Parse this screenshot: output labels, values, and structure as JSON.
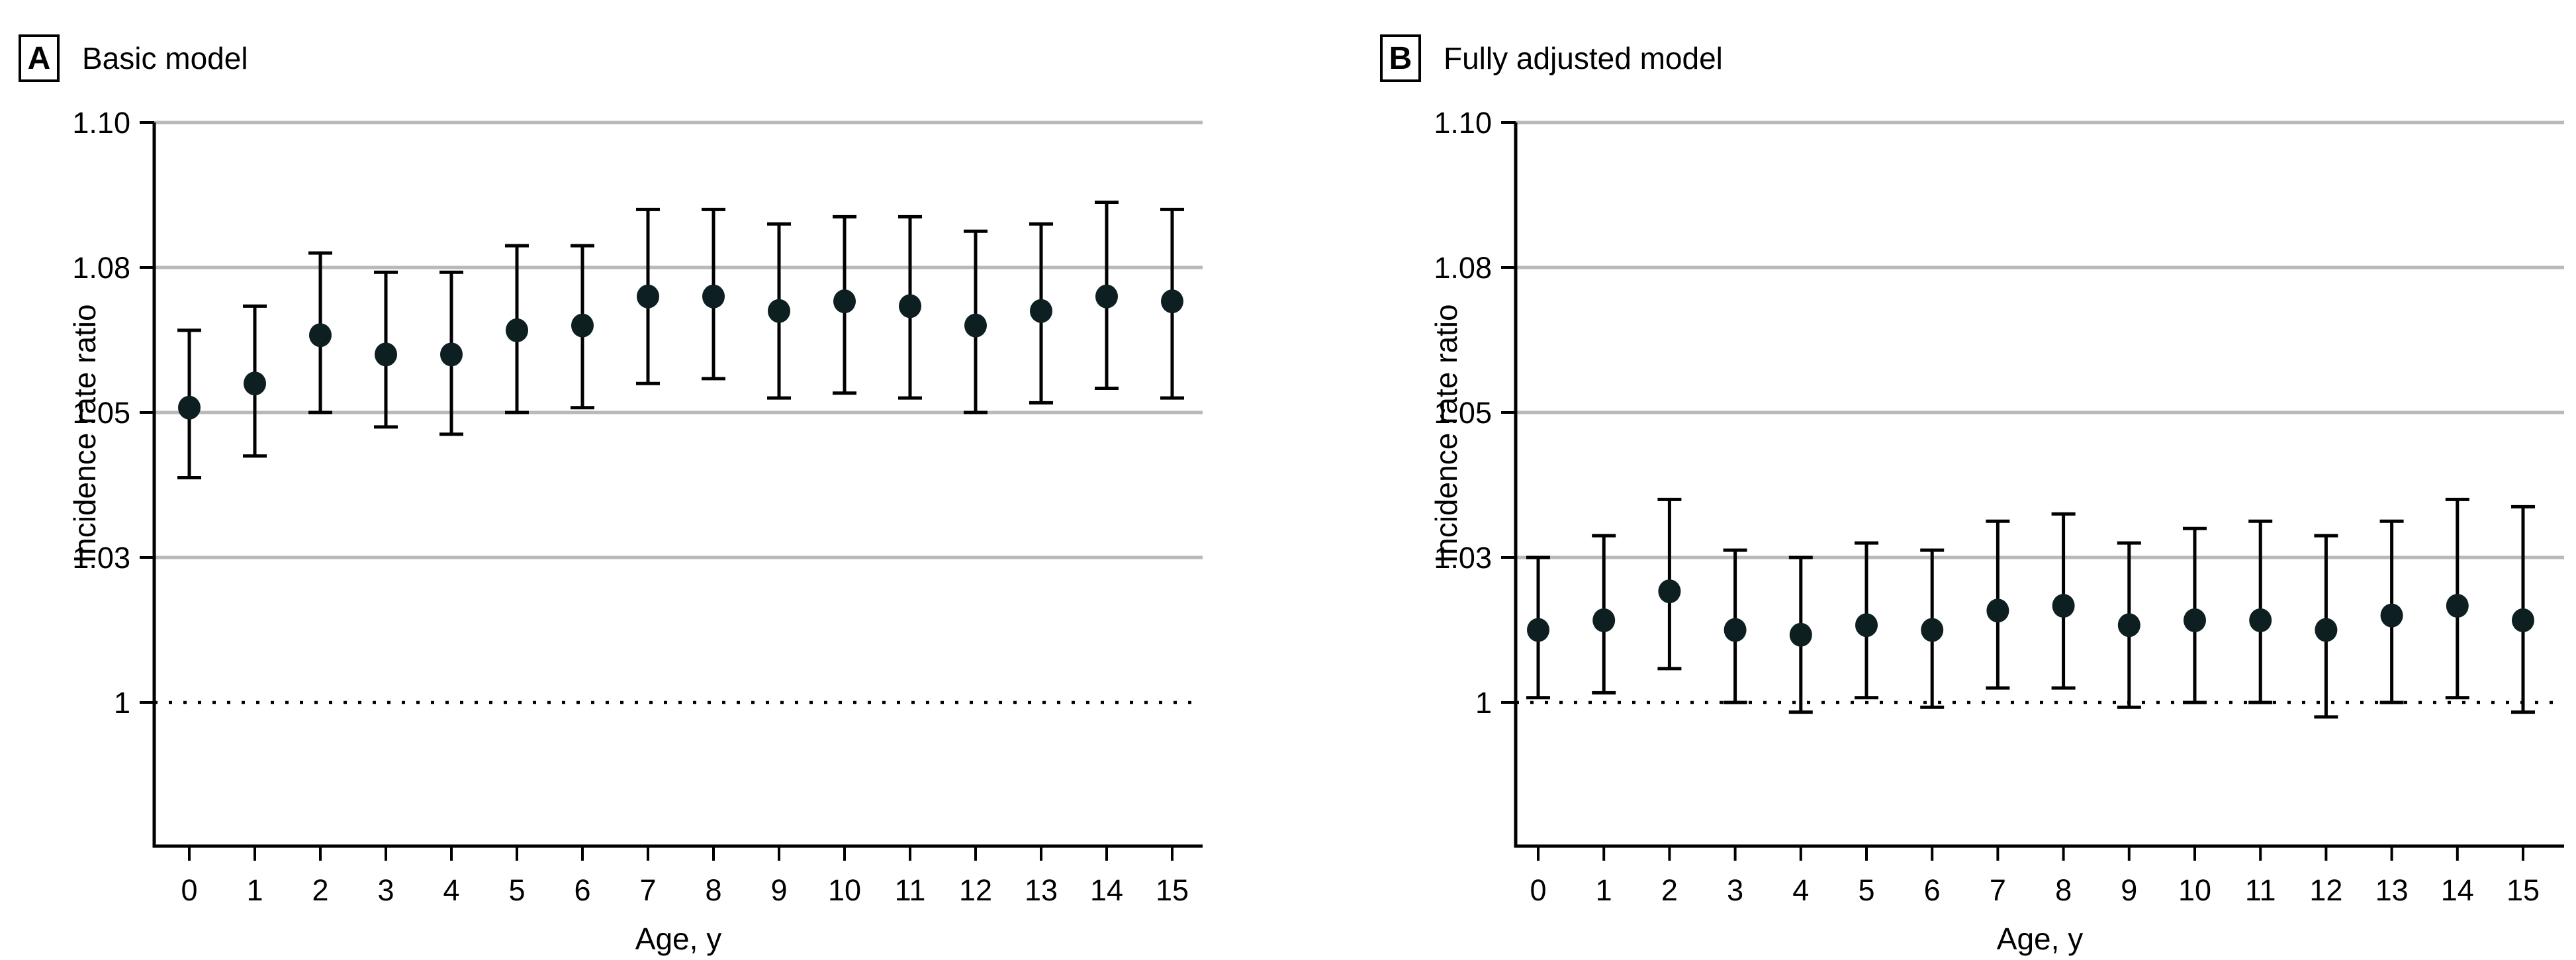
{
  "figure": {
    "panels": [
      {
        "label": "A",
        "title": "Basic model"
      },
      {
        "label": "B",
        "title": "Fully adjusted model"
      }
    ]
  },
  "chart_data": [
    {
      "type": "scatter",
      "panel_label": "A",
      "title": "Basic model",
      "xlabel": "Age, y",
      "ylabel": "Incidence rate ratio",
      "x": [
        0,
        1,
        2,
        3,
        4,
        5,
        6,
        7,
        8,
        9,
        10,
        11,
        12,
        13,
        14,
        15
      ],
      "series": [
        {
          "name": "Incidence rate ratio",
          "values": [
            1.051,
            1.056,
            1.066,
            1.062,
            1.062,
            1.067,
            1.068,
            1.074,
            1.074,
            1.071,
            1.073,
            1.072,
            1.068,
            1.071,
            1.074,
            1.073
          ]
        },
        {
          "name": "95% CI lower",
          "values": [
            1.041,
            1.044,
            1.05,
            1.048,
            1.047,
            1.05,
            1.051,
            1.056,
            1.057,
            1.053,
            1.054,
            1.053,
            1.05,
            1.052,
            1.055,
            1.053
          ]
        },
        {
          "name": "95% CI upper",
          "values": [
            1.067,
            1.072,
            1.082,
            1.079,
            1.079,
            1.083,
            1.083,
            1.088,
            1.088,
            1.086,
            1.087,
            1.087,
            1.085,
            1.086,
            1.089,
            1.088
          ]
        }
      ],
      "yticks": [
        1,
        1.03,
        1.05,
        1.08,
        1.1
      ],
      "ytick_labels": [
        "1",
        "1.03",
        "1.05",
        "1.08",
        "1.10"
      ],
      "xtick_labels": [
        "0",
        "1",
        "2",
        "3",
        "4",
        "5",
        "6",
        "7",
        "8",
        "9",
        "10",
        "11",
        "12",
        "13",
        "14",
        "15"
      ],
      "reference_line": 1,
      "grid": "horizontal",
      "legend": "none",
      "marker_color": "#0e1f21",
      "gridline_color": "#b9b9b9",
      "axis_color": "#000000"
    },
    {
      "type": "scatter",
      "panel_label": "B",
      "title": "Fully adjusted model",
      "xlabel": "Age, y",
      "ylabel": "Incidence rate ratio",
      "x": [
        0,
        1,
        2,
        3,
        4,
        5,
        6,
        7,
        8,
        9,
        10,
        11,
        12,
        13,
        14,
        15
      ],
      "series": [
        {
          "name": "Incidence rate ratio",
          "values": [
            1.015,
            1.017,
            1.023,
            1.015,
            1.014,
            1.016,
            1.015,
            1.019,
            1.02,
            1.016,
            1.017,
            1.017,
            1.015,
            1.018,
            1.02,
            1.017
          ]
        },
        {
          "name": "95% CI lower",
          "values": [
            1.001,
            1.002,
            1.007,
            1.0,
            0.998,
            1.001,
            0.999,
            1.003,
            1.003,
            0.999,
            1.0,
            1.0,
            0.997,
            1.0,
            1.001,
            0.998
          ]
        },
        {
          "name": "95% CI upper",
          "values": [
            1.03,
            1.033,
            1.038,
            1.031,
            1.03,
            1.032,
            1.031,
            1.035,
            1.036,
            1.032,
            1.034,
            1.035,
            1.033,
            1.035,
            1.038,
            1.037
          ]
        }
      ],
      "yticks": [
        1,
        1.03,
        1.05,
        1.08,
        1.1
      ],
      "ytick_labels": [
        "1",
        "1.03",
        "1.05",
        "1.08",
        "1.10"
      ],
      "xtick_labels": [
        "0",
        "1",
        "2",
        "3",
        "4",
        "5",
        "6",
        "7",
        "8",
        "9",
        "10",
        "11",
        "12",
        "13",
        "14",
        "15"
      ],
      "reference_line": 1,
      "grid": "horizontal",
      "legend": "none",
      "marker_color": "#0e1f21",
      "gridline_color": "#b9b9b9",
      "axis_color": "#000000"
    }
  ]
}
